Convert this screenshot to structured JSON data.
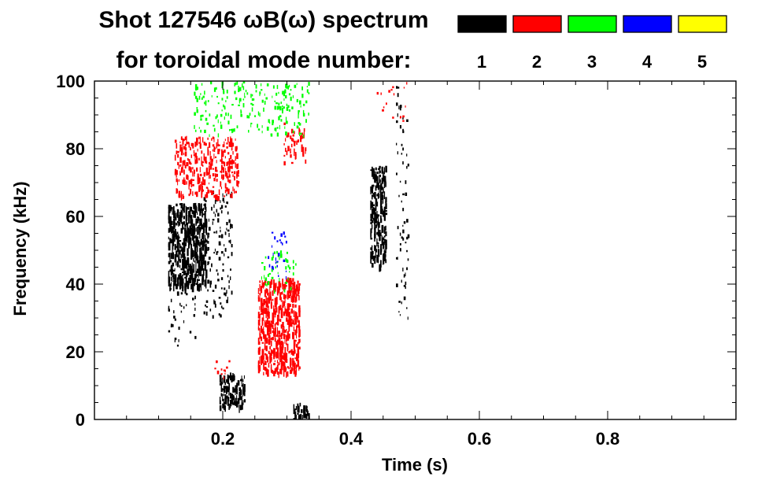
{
  "chart_data": {
    "type": "heatmap",
    "title_line1": "Shot 127546 ωB(ω) spectrum",
    "title_line2": "for toroidal mode number:",
    "xlabel": "Time (s)",
    "ylabel": "Frequency (kHz)",
    "xlim": [
      0.0,
      1.0
    ],
    "ylim": [
      0,
      100
    ],
    "xticks": [
      {
        "value": 0.2,
        "label": "0.2"
      },
      {
        "value": 0.4,
        "label": "0.4"
      },
      {
        "value": 0.6,
        "label": "0.6"
      },
      {
        "value": 0.8,
        "label": "0.8"
      }
    ],
    "yticks": [
      {
        "value": 0,
        "label": "0"
      },
      {
        "value": 20,
        "label": "20"
      },
      {
        "value": 40,
        "label": "40"
      },
      {
        "value": 60,
        "label": "60"
      },
      {
        "value": 80,
        "label": "80"
      },
      {
        "value": 100,
        "label": "100"
      }
    ],
    "legend": [
      {
        "mode": "1",
        "color": "#000000"
      },
      {
        "mode": "2",
        "color": "#ff0000"
      },
      {
        "mode": "3",
        "color": "#00ff00"
      },
      {
        "mode": "4",
        "color": "#0000ff"
      },
      {
        "mode": "5",
        "color": "#ffff00"
      }
    ],
    "regions": [
      {
        "mode": "1",
        "t": [
          0.115,
          0.175
        ],
        "f": [
          40,
          64
        ],
        "density": 0.9
      },
      {
        "mode": "1",
        "t": [
          0.115,
          0.16
        ],
        "f": [
          22,
          42
        ],
        "density": 0.25
      },
      {
        "mode": "1",
        "t": [
          0.17,
          0.215
        ],
        "f": [
          30,
          68
        ],
        "density": 0.35
      },
      {
        "mode": "1",
        "t": [
          0.195,
          0.235
        ],
        "f": [
          4,
          14
        ],
        "density": 0.8
      },
      {
        "mode": "1",
        "t": [
          0.31,
          0.335
        ],
        "f": [
          0,
          5
        ],
        "density": 0.7
      },
      {
        "mode": "1",
        "t": [
          0.43,
          0.455
        ],
        "f": [
          45,
          75
        ],
        "density": 0.85
      },
      {
        "mode": "1",
        "t": [
          0.47,
          0.49
        ],
        "f": [
          30,
          100
        ],
        "density": 0.3
      },
      {
        "mode": "2",
        "t": [
          0.125,
          0.225
        ],
        "f": [
          66,
          84
        ],
        "density": 0.6
      },
      {
        "mode": "2",
        "t": [
          0.255,
          0.32
        ],
        "f": [
          14,
          42
        ],
        "density": 0.8
      },
      {
        "mode": "2",
        "t": [
          0.295,
          0.33
        ],
        "f": [
          76,
          88
        ],
        "density": 0.5
      },
      {
        "mode": "2",
        "t": [
          0.185,
          0.215
        ],
        "f": [
          12,
          18
        ],
        "density": 0.3
      },
      {
        "mode": "2",
        "t": [
          0.44,
          0.49
        ],
        "f": [
          88,
          100
        ],
        "density": 0.15
      },
      {
        "mode": "3",
        "t": [
          0.155,
          0.3
        ],
        "f": [
          84,
          100
        ],
        "density": 0.35
      },
      {
        "mode": "3",
        "t": [
          0.26,
          0.315
        ],
        "f": [
          38,
          50
        ],
        "density": 0.35
      },
      {
        "mode": "3",
        "t": [
          0.295,
          0.335
        ],
        "f": [
          84,
          100
        ],
        "density": 0.35
      },
      {
        "mode": "4",
        "t": [
          0.27,
          0.3
        ],
        "f": [
          42,
          56
        ],
        "density": 0.25
      }
    ]
  }
}
